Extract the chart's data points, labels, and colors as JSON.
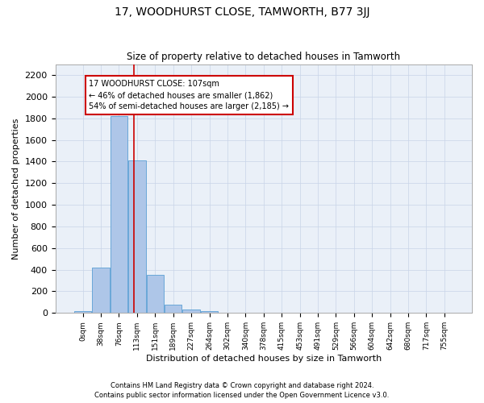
{
  "title": "17, WOODHURST CLOSE, TAMWORTH, B77 3JJ",
  "subtitle": "Size of property relative to detached houses in Tamworth",
  "xlabel": "Distribution of detached houses by size in Tamworth",
  "ylabel": "Number of detached properties",
  "footnote1": "Contains HM Land Registry data © Crown copyright and database right 2024.",
  "footnote2": "Contains public sector information licensed under the Open Government Licence v3.0.",
  "bar_labels": [
    "0sqm",
    "38sqm",
    "76sqm",
    "113sqm",
    "151sqm",
    "189sqm",
    "227sqm",
    "264sqm",
    "302sqm",
    "340sqm",
    "378sqm",
    "415sqm",
    "453sqm",
    "491sqm",
    "529sqm",
    "566sqm",
    "604sqm",
    "642sqm",
    "680sqm",
    "717sqm",
    "755sqm"
  ],
  "bar_values": [
    15,
    420,
    1820,
    1410,
    350,
    75,
    30,
    15,
    0,
    0,
    0,
    0,
    0,
    0,
    0,
    0,
    0,
    0,
    0,
    0,
    0
  ],
  "bar_color": "#aec6e8",
  "bar_edge_color": "#5a9fd4",
  "ylim": [
    0,
    2300
  ],
  "yticks": [
    0,
    200,
    400,
    600,
    800,
    1000,
    1200,
    1400,
    1600,
    1800,
    2000,
    2200
  ],
  "property_line_x": 2.838,
  "annotation_text": "17 WOODHURST CLOSE: 107sqm\n← 46% of detached houses are smaller (1,862)\n54% of semi-detached houses are larger (2,185) →",
  "annotation_box_color": "#cc0000",
  "grid_color": "#c8d4e8",
  "background_color": "#eaf0f8"
}
